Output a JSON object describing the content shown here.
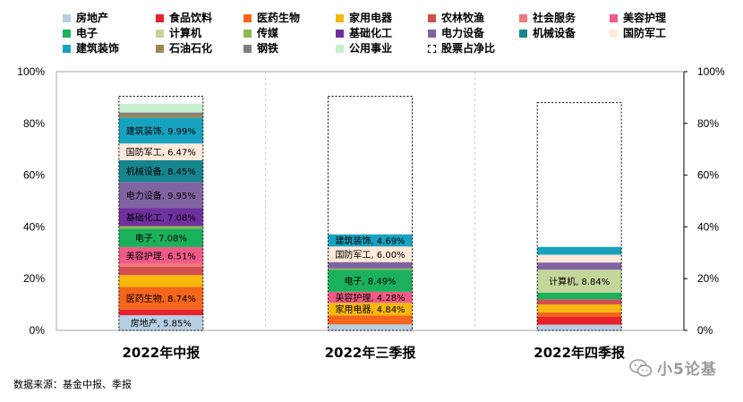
{
  "chart_data": {
    "type": "bar",
    "subtype": "stacked",
    "categories": [
      "2022年中报",
      "2022年三季报",
      "2022年四季报"
    ],
    "ylim": [
      0,
      100
    ],
    "y_ticks": [
      "0%",
      "20%",
      "40%",
      "60%",
      "80%",
      "100%"
    ],
    "secondary_y_ticks": [
      "0%",
      "20%",
      "40%",
      "60%",
      "80%",
      "100%"
    ],
    "legend_position": "top",
    "grid": "vertical dashed separators",
    "series": [
      {
        "name": "房地产",
        "color": "#b7cfe3",
        "values": [
          5.85,
          2.3,
          2.2
        ]
      },
      {
        "name": "食品饮料",
        "color": "#e8212c",
        "values": [
          2.2,
          0.0,
          3.0
        ]
      },
      {
        "name": "医药生物",
        "color": "#f5651b",
        "values": [
          8.74,
          3.5,
          1.8
        ]
      },
      {
        "name": "家用电器",
        "color": "#f7b80d",
        "values": [
          4.6,
          4.84,
          3.0
        ]
      },
      {
        "name": "农林牧渔",
        "color": "#d24f4c",
        "values": [
          3.3,
          0.0,
          2.0
        ]
      },
      {
        "name": "社会服务",
        "color": "#f07a79",
        "values": [
          1.0,
          0.0,
          0.0
        ]
      },
      {
        "name": "美容护理",
        "color": "#ef5a86",
        "values": [
          6.51,
          4.28,
          0.0
        ]
      },
      {
        "name": "电子",
        "color": "#1ab05c",
        "values": [
          7.08,
          8.49,
          2.6
        ]
      },
      {
        "name": "计算机",
        "color": "#c4d79b",
        "values": [
          0.0,
          0.0,
          8.84
        ]
      },
      {
        "name": "传媒",
        "color": "#8fba4e",
        "values": [
          1.0,
          0.5,
          0.0
        ]
      },
      {
        "name": "基础化工",
        "color": "#7030a0",
        "values": [
          7.08,
          0.0,
          0.0
        ]
      },
      {
        "name": "电力设备",
        "color": "#8064a2",
        "values": [
          9.95,
          2.5,
          2.8
        ]
      },
      {
        "name": "机械设备",
        "color": "#17858e",
        "values": [
          8.45,
          0.0,
          0.0
        ]
      },
      {
        "name": "国防军工",
        "color": "#fde9d9",
        "values": [
          6.47,
          6.0,
          3.0
        ]
      },
      {
        "name": "建筑装饰",
        "color": "#17a3c0",
        "values": [
          9.99,
          4.69,
          3.0
        ]
      },
      {
        "name": "石油石化",
        "color": "#9c8a4e",
        "values": [
          1.0,
          0.0,
          0.0
        ]
      },
      {
        "name": "钢铁",
        "color": "#7f7f7f",
        "values": [
          1.0,
          0.0,
          0.0
        ]
      },
      {
        "name": "公用事业",
        "color": "#c6efce",
        "values": [
          3.3,
          0.0,
          0.0
        ]
      }
    ],
    "totals": [
      {
        "name": "股票占净比",
        "values": [
          90.5,
          90.5,
          88.0
        ]
      }
    ],
    "data_labels": [
      [
        [
          "房地产",
          "房地产, 5.85%"
        ],
        [
          "医药生物",
          "医药生物, 8.74%"
        ],
        [
          "美容护理",
          "美容护理, 6.51%"
        ],
        [
          "电子",
          "电子, 7.08%"
        ],
        [
          "基础化工",
          "基础化工, 7.08%"
        ],
        [
          "电力设备",
          "电力设备, 9.95%"
        ],
        [
          "机械设备",
          "机械设备, 8.45%"
        ],
        [
          "国防军工",
          "国防军工, 6.47%"
        ],
        [
          "建筑装饰",
          "建筑装饰, 9.99%"
        ]
      ],
      [
        [
          "家用电器",
          "家用电器, 4.84%"
        ],
        [
          "美容护理",
          "美容护理, 4.28%"
        ],
        [
          "电子",
          "电子, 8.49%"
        ],
        [
          "国防军工",
          "国防军工, 6.00%"
        ],
        [
          "建筑装饰",
          "建筑装饰, 4.69%"
        ]
      ],
      [
        [
          "计算机",
          "计算机, 8.84%"
        ]
      ]
    ]
  },
  "legend": [
    {
      "label": "房地产",
      "color": "#b7cfe3"
    },
    {
      "label": "食品饮料",
      "color": "#e8212c"
    },
    {
      "label": "医药生物",
      "color": "#f5651b"
    },
    {
      "label": "家用电器",
      "color": "#f7b80d"
    },
    {
      "label": "农林牧渔",
      "color": "#d24f4c"
    },
    {
      "label": "社会服务",
      "color": "#f07a79"
    },
    {
      "label": "美容护理",
      "color": "#ef5a86"
    },
    {
      "label": "电子",
      "color": "#1ab05c"
    },
    {
      "label": "计算机",
      "color": "#c4d79b"
    },
    {
      "label": "传媒",
      "color": "#8fba4e"
    },
    {
      "label": "基础化工",
      "color": "#7030a0"
    },
    {
      "label": "电力设备",
      "color": "#8064a2"
    },
    {
      "label": "机械设备",
      "color": "#17858e"
    },
    {
      "label": "国防军工",
      "color": "#fde9d9"
    },
    {
      "label": "建筑装饰",
      "color": "#17a3c0"
    },
    {
      "label": "石油石化",
      "color": "#9c8a4e"
    },
    {
      "label": "钢铁",
      "color": "#7f7f7f"
    },
    {
      "label": "公用事业",
      "color": "#c6efce"
    },
    {
      "label": "股票占净比",
      "color": "#ffffff",
      "dashed": true
    }
  ],
  "footer": {
    "source": "数据来源：基金中报、季报"
  },
  "watermark": {
    "text": "小5论基",
    "icon": "wechat-icon"
  }
}
